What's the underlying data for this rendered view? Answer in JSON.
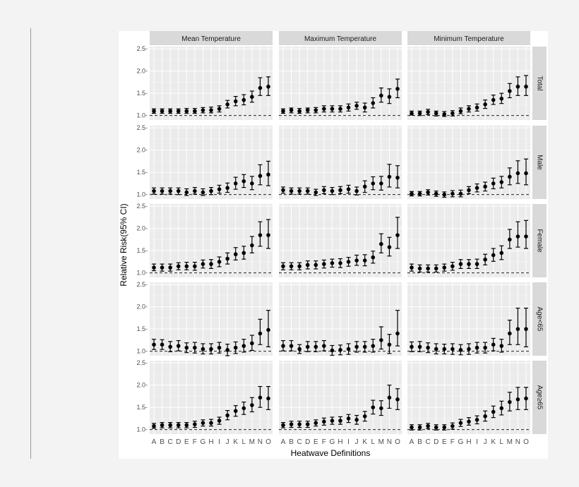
{
  "chart_data": {
    "type": "scatter",
    "subtype": "faceted point-range (estimate with 95% CI)",
    "xlabel": "Heatwave Definitions",
    "ylabel": "Relative Risk(95% CI)",
    "ylim": [
      0.9,
      2.55
    ],
    "yticks": [
      1.0,
      1.5,
      2.0,
      2.5
    ],
    "ytick_labels": [
      "1.0-",
      "1.5-",
      "2.0-",
      "2.5-"
    ],
    "reference_line": 1.0,
    "grid": true,
    "categories": [
      "A",
      "B",
      "C",
      "D",
      "E",
      "F",
      "G",
      "H",
      "I",
      "J",
      "K",
      "L",
      "M",
      "N",
      "O"
    ],
    "columns": [
      "Mean Temperature",
      "Maximum Temperature",
      "Minimum Temperature"
    ],
    "rows": [
      "Total",
      "Male",
      "Female",
      "Age<65",
      "Age≥65"
    ],
    "panels": [
      [
        {
          "est": [
            1.1,
            1.1,
            1.1,
            1.1,
            1.1,
            1.1,
            1.12,
            1.12,
            1.15,
            1.25,
            1.32,
            1.35,
            1.42,
            1.62,
            1.65
          ],
          "lo": [
            1.05,
            1.05,
            1.05,
            1.05,
            1.05,
            1.05,
            1.06,
            1.06,
            1.08,
            1.17,
            1.22,
            1.24,
            1.3,
            1.45,
            1.45
          ],
          "hi": [
            1.15,
            1.15,
            1.15,
            1.15,
            1.16,
            1.16,
            1.18,
            1.19,
            1.22,
            1.34,
            1.43,
            1.47,
            1.55,
            1.85,
            1.87
          ]
        },
        {
          "est": [
            1.1,
            1.12,
            1.1,
            1.12,
            1.12,
            1.15,
            1.15,
            1.15,
            1.18,
            1.22,
            1.18,
            1.28,
            1.45,
            1.42,
            1.6
          ],
          "lo": [
            1.05,
            1.06,
            1.05,
            1.06,
            1.06,
            1.08,
            1.08,
            1.08,
            1.1,
            1.14,
            1.08,
            1.17,
            1.3,
            1.27,
            1.4
          ],
          "hi": [
            1.15,
            1.17,
            1.16,
            1.17,
            1.18,
            1.22,
            1.22,
            1.22,
            1.26,
            1.3,
            1.28,
            1.4,
            1.62,
            1.6,
            1.82
          ]
        },
        {
          "est": [
            1.05,
            1.05,
            1.08,
            1.05,
            1.03,
            1.05,
            1.1,
            1.15,
            1.18,
            1.25,
            1.35,
            1.38,
            1.55,
            1.65,
            1.65
          ],
          "lo": [
            1.01,
            1.0,
            1.02,
            0.99,
            0.98,
            0.99,
            1.04,
            1.08,
            1.1,
            1.16,
            1.25,
            1.27,
            1.4,
            1.45,
            1.45
          ],
          "hi": [
            1.1,
            1.1,
            1.14,
            1.1,
            1.09,
            1.11,
            1.17,
            1.22,
            1.26,
            1.35,
            1.46,
            1.5,
            1.72,
            1.87,
            1.9
          ]
        }
      ],
      [
        {
          "est": [
            1.08,
            1.08,
            1.08,
            1.08,
            1.05,
            1.08,
            1.05,
            1.08,
            1.12,
            1.15,
            1.25,
            1.3,
            1.25,
            1.42,
            1.45
          ],
          "lo": [
            1.01,
            1.01,
            1.01,
            1.0,
            0.98,
            1.01,
            0.98,
            1.0,
            1.03,
            1.05,
            1.12,
            1.16,
            1.11,
            1.22,
            1.2
          ],
          "hi": [
            1.15,
            1.15,
            1.15,
            1.15,
            1.13,
            1.16,
            1.13,
            1.16,
            1.21,
            1.26,
            1.39,
            1.45,
            1.41,
            1.67,
            1.75
          ]
        },
        {
          "est": [
            1.1,
            1.08,
            1.08,
            1.08,
            1.05,
            1.1,
            1.08,
            1.1,
            1.12,
            1.08,
            1.18,
            1.25,
            1.25,
            1.4,
            1.38
          ],
          "lo": [
            1.03,
            1.01,
            1.01,
            1.01,
            0.98,
            1.02,
            1.0,
            1.02,
            1.03,
            0.99,
            1.05,
            1.11,
            1.1,
            1.17,
            1.15
          ],
          "hi": [
            1.17,
            1.15,
            1.15,
            1.15,
            1.12,
            1.18,
            1.16,
            1.18,
            1.21,
            1.17,
            1.31,
            1.4,
            1.41,
            1.68,
            1.65
          ]
        },
        {
          "est": [
            1.02,
            1.02,
            1.05,
            1.02,
            1.0,
            1.02,
            1.02,
            1.1,
            1.15,
            1.18,
            1.25,
            1.28,
            1.4,
            1.48,
            1.48
          ],
          "lo": [
            0.97,
            0.97,
            0.99,
            0.96,
            0.94,
            0.95,
            0.95,
            1.02,
            1.06,
            1.08,
            1.13,
            1.15,
            1.22,
            1.25,
            1.22
          ],
          "hi": [
            1.07,
            1.07,
            1.11,
            1.08,
            1.06,
            1.09,
            1.1,
            1.18,
            1.24,
            1.28,
            1.37,
            1.41,
            1.6,
            1.76,
            1.8
          ]
        }
      ],
      [
        {
          "est": [
            1.12,
            1.12,
            1.12,
            1.15,
            1.15,
            1.15,
            1.2,
            1.2,
            1.25,
            1.32,
            1.42,
            1.45,
            1.62,
            1.85,
            1.85
          ],
          "lo": [
            1.05,
            1.04,
            1.04,
            1.07,
            1.07,
            1.06,
            1.11,
            1.1,
            1.14,
            1.2,
            1.29,
            1.31,
            1.45,
            1.6,
            1.55
          ],
          "hi": [
            1.2,
            1.2,
            1.2,
            1.23,
            1.24,
            1.24,
            1.29,
            1.3,
            1.36,
            1.45,
            1.57,
            1.6,
            1.82,
            2.15,
            2.2
          ]
        },
        {
          "est": [
            1.15,
            1.15,
            1.15,
            1.18,
            1.18,
            1.2,
            1.22,
            1.22,
            1.25,
            1.28,
            1.28,
            1.35,
            1.65,
            1.58,
            1.85
          ],
          "lo": [
            1.07,
            1.07,
            1.07,
            1.09,
            1.09,
            1.11,
            1.13,
            1.12,
            1.15,
            1.17,
            1.16,
            1.22,
            1.45,
            1.38,
            1.55
          ],
          "hi": [
            1.23,
            1.23,
            1.23,
            1.27,
            1.27,
            1.29,
            1.31,
            1.32,
            1.35,
            1.4,
            1.41,
            1.49,
            1.88,
            1.8,
            2.25
          ]
        },
        {
          "est": [
            1.12,
            1.1,
            1.1,
            1.1,
            1.12,
            1.15,
            1.2,
            1.2,
            1.2,
            1.3,
            1.4,
            1.45,
            1.75,
            1.82,
            1.82
          ],
          "lo": [
            1.04,
            1.02,
            1.02,
            1.02,
            1.04,
            1.06,
            1.1,
            1.1,
            1.1,
            1.18,
            1.26,
            1.3,
            1.55,
            1.58,
            1.55
          ],
          "hi": [
            1.2,
            1.18,
            1.18,
            1.18,
            1.2,
            1.24,
            1.3,
            1.3,
            1.31,
            1.42,
            1.55,
            1.61,
            1.98,
            2.15,
            2.18
          ]
        }
      ],
      [
        {
          "est": [
            1.15,
            1.15,
            1.1,
            1.12,
            1.08,
            1.08,
            1.05,
            1.05,
            1.08,
            1.03,
            1.08,
            1.12,
            1.18,
            1.4,
            1.48
          ],
          "lo": [
            1.04,
            1.04,
            0.99,
            1.01,
            0.97,
            0.96,
            0.94,
            0.94,
            0.96,
            0.9,
            0.95,
            0.98,
            1.02,
            1.15,
            1.1
          ],
          "hi": [
            1.27,
            1.26,
            1.22,
            1.24,
            1.19,
            1.2,
            1.17,
            1.17,
            1.2,
            1.16,
            1.21,
            1.27,
            1.36,
            1.72,
            1.92
          ]
        },
        {
          "est": [
            1.12,
            1.12,
            1.05,
            1.1,
            1.1,
            1.12,
            1.02,
            1.03,
            1.05,
            1.1,
            1.1,
            1.12,
            1.25,
            1.15,
            1.4
          ],
          "lo": [
            1.01,
            1.01,
            0.95,
            0.99,
            0.99,
            1.01,
            0.91,
            0.92,
            0.93,
            0.98,
            0.98,
            0.98,
            1.05,
            0.95,
            1.12
          ],
          "hi": [
            1.24,
            1.24,
            1.15,
            1.22,
            1.22,
            1.24,
            1.13,
            1.14,
            1.17,
            1.22,
            1.22,
            1.27,
            1.55,
            1.38,
            1.92
          ]
        },
        {
          "est": [
            1.1,
            1.1,
            1.08,
            1.05,
            1.05,
            1.05,
            1.03,
            1.05,
            1.08,
            1.08,
            1.15,
            1.12,
            1.4,
            1.5,
            1.5
          ],
          "lo": [
            0.99,
            0.99,
            0.97,
            0.94,
            0.94,
            0.93,
            0.92,
            0.93,
            0.96,
            0.96,
            1.01,
            0.98,
            1.15,
            1.15,
            1.1
          ],
          "hi": [
            1.21,
            1.22,
            1.19,
            1.17,
            1.16,
            1.17,
            1.15,
            1.17,
            1.2,
            1.2,
            1.29,
            1.27,
            1.7,
            1.97,
            1.97
          ]
        }
      ],
      [
        {
          "est": [
            1.08,
            1.1,
            1.1,
            1.1,
            1.1,
            1.12,
            1.15,
            1.15,
            1.2,
            1.32,
            1.42,
            1.48,
            1.55,
            1.72,
            1.7
          ],
          "lo": [
            1.03,
            1.04,
            1.04,
            1.04,
            1.04,
            1.05,
            1.08,
            1.08,
            1.12,
            1.22,
            1.3,
            1.34,
            1.4,
            1.5,
            1.45
          ],
          "hi": [
            1.14,
            1.16,
            1.16,
            1.16,
            1.16,
            1.19,
            1.22,
            1.23,
            1.28,
            1.43,
            1.54,
            1.62,
            1.72,
            1.97,
            1.97
          ]
        },
        {
          "est": [
            1.1,
            1.12,
            1.12,
            1.12,
            1.15,
            1.18,
            1.2,
            1.2,
            1.25,
            1.22,
            1.3,
            1.5,
            1.48,
            1.72,
            1.68
          ],
          "lo": [
            1.04,
            1.05,
            1.05,
            1.05,
            1.08,
            1.1,
            1.12,
            1.12,
            1.16,
            1.12,
            1.19,
            1.35,
            1.32,
            1.48,
            1.45
          ],
          "hi": [
            1.16,
            1.19,
            1.19,
            1.19,
            1.22,
            1.26,
            1.28,
            1.29,
            1.34,
            1.32,
            1.41,
            1.66,
            1.65,
            2.0,
            1.92
          ]
        },
        {
          "est": [
            1.05,
            1.05,
            1.08,
            1.05,
            1.05,
            1.08,
            1.15,
            1.18,
            1.22,
            1.3,
            1.4,
            1.48,
            1.62,
            1.68,
            1.7
          ],
          "lo": [
            0.99,
            0.99,
            1.02,
            0.99,
            0.99,
            1.01,
            1.07,
            1.1,
            1.13,
            1.19,
            1.27,
            1.33,
            1.42,
            1.45,
            1.45
          ],
          "hi": [
            1.11,
            1.11,
            1.14,
            1.11,
            1.11,
            1.15,
            1.23,
            1.27,
            1.31,
            1.42,
            1.53,
            1.64,
            1.84,
            1.95,
            1.95
          ]
        }
      ]
    ]
  }
}
